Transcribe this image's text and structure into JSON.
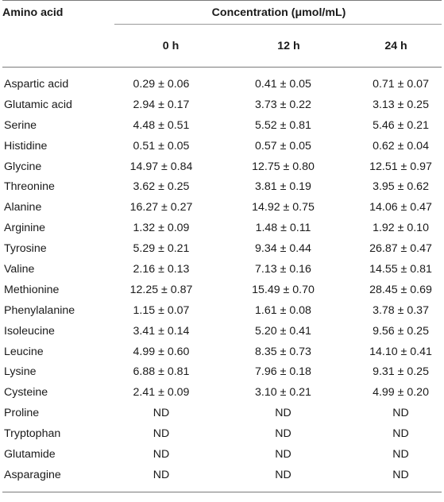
{
  "table": {
    "header": {
      "amino_acid": "Amino acid",
      "concentration": "Concentration (μmol/mL)",
      "times": [
        "0 h",
        "12 h",
        "24 h"
      ]
    },
    "rows": [
      {
        "name": "Aspartic acid",
        "v0": "0.29 ± 0.06",
        "v12": "0.41 ± 0.05",
        "v24": "0.71 ± 0.07"
      },
      {
        "name": "Glutamic acid",
        "v0": "2.94 ± 0.17",
        "v12": "3.73 ± 0.22",
        "v24": "3.13 ± 0.25"
      },
      {
        "name": "Serine",
        "v0": "4.48 ± 0.51",
        "v12": "5.52 ± 0.81",
        "v24": "5.46 ± 0.21"
      },
      {
        "name": "Histidine",
        "v0": "0.51 ± 0.05",
        "v12": "0.57 ± 0.05",
        "v24": "0.62 ± 0.04"
      },
      {
        "name": "Glycine",
        "v0": "14.97 ± 0.84",
        "v12": "12.75 ± 0.80",
        "v24": "12.51 ± 0.97"
      },
      {
        "name": "Threonine",
        "v0": "3.62 ± 0.25",
        "v12": "3.81 ± 0.19",
        "v24": "3.95 ± 0.62"
      },
      {
        "name": "Alanine",
        "v0": "16.27 ± 0.27",
        "v12": "14.92 ± 0.75",
        "v24": "14.06 ± 0.47"
      },
      {
        "name": "Arginine",
        "v0": "1.32 ± 0.09",
        "v12": "1.48 ± 0.11",
        "v24": "1.92 ± 0.10"
      },
      {
        "name": "Tyrosine",
        "v0": "5.29 ± 0.21",
        "v12": "9.34 ± 0.44",
        "v24": "26.87 ± 0.47"
      },
      {
        "name": "Valine",
        "v0": "2.16 ± 0.13",
        "v12": "7.13 ± 0.16",
        "v24": "14.55 ± 0.81"
      },
      {
        "name": "Methionine",
        "v0": "12.25 ± 0.87",
        "v12": "15.49 ± 0.70",
        "v24": "28.45 ± 0.69"
      },
      {
        "name": "Phenylalanine",
        "v0": "1.15 ± 0.07",
        "v12": "1.61 ± 0.08",
        "v24": "3.78 ± 0.37"
      },
      {
        "name": "Isoleucine",
        "v0": "3.41 ± 0.14",
        "v12": "5.20 ± 0.41",
        "v24": "9.56 ± 0.25"
      },
      {
        "name": "Leucine",
        "v0": "4.99 ± 0.60",
        "v12": "8.35 ± 0.73",
        "v24": "14.10 ± 0.41"
      },
      {
        "name": "Lysine",
        "v0": "6.88 ± 0.81",
        "v12": "7.96 ± 0.18",
        "v24": "9.31 ± 0.25"
      },
      {
        "name": "Cysteine",
        "v0": "2.41 ± 0.09",
        "v12": "3.10 ± 0.21",
        "v24": "4.99 ± 0.20"
      },
      {
        "name": "Proline",
        "v0": "ND",
        "v12": "ND",
        "v24": "ND"
      },
      {
        "name": "Tryptophan",
        "v0": "ND",
        "v12": "ND",
        "v24": "ND"
      },
      {
        "name": "Glutamide",
        "v0": "ND",
        "v12": "ND",
        "v24": "ND"
      },
      {
        "name": "Asparagine",
        "v0": "ND",
        "v12": "ND",
        "v24": "ND"
      }
    ]
  }
}
